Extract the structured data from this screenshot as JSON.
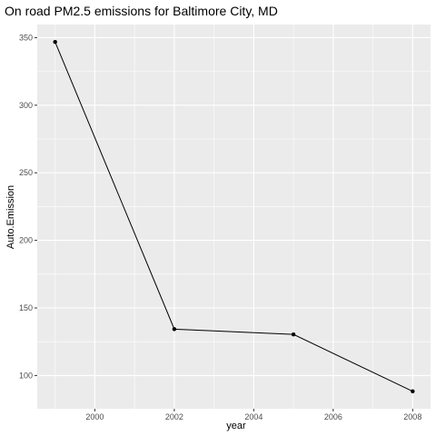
{
  "chart_data": {
    "type": "line",
    "title": "On road PM2.5 emissions for Baltimore City, MD",
    "xlabel": "year",
    "ylabel": "Auto.Emission",
    "x": [
      1999,
      2002,
      2005,
      2008
    ],
    "values": [
      346.8,
      134.3,
      130.4,
      88.3
    ],
    "xlim": [
      1998.55,
      2008.45
    ],
    "ylim": [
      75.4,
      359.7
    ],
    "xticks": [
      2000,
      2002,
      2004,
      2006,
      2008
    ],
    "xtick_labels": [
      "2000",
      "2002",
      "2004",
      "2006",
      "2008"
    ],
    "yticks": [
      100,
      150,
      200,
      250,
      300,
      350
    ],
    "ytick_labels": [
      "100",
      "150",
      "200",
      "250",
      "300",
      "350"
    ],
    "grid": true,
    "colors": {
      "panel": "#ebebeb",
      "grid_major": "#ffffff",
      "line": "#000000",
      "point": "#000000"
    }
  }
}
